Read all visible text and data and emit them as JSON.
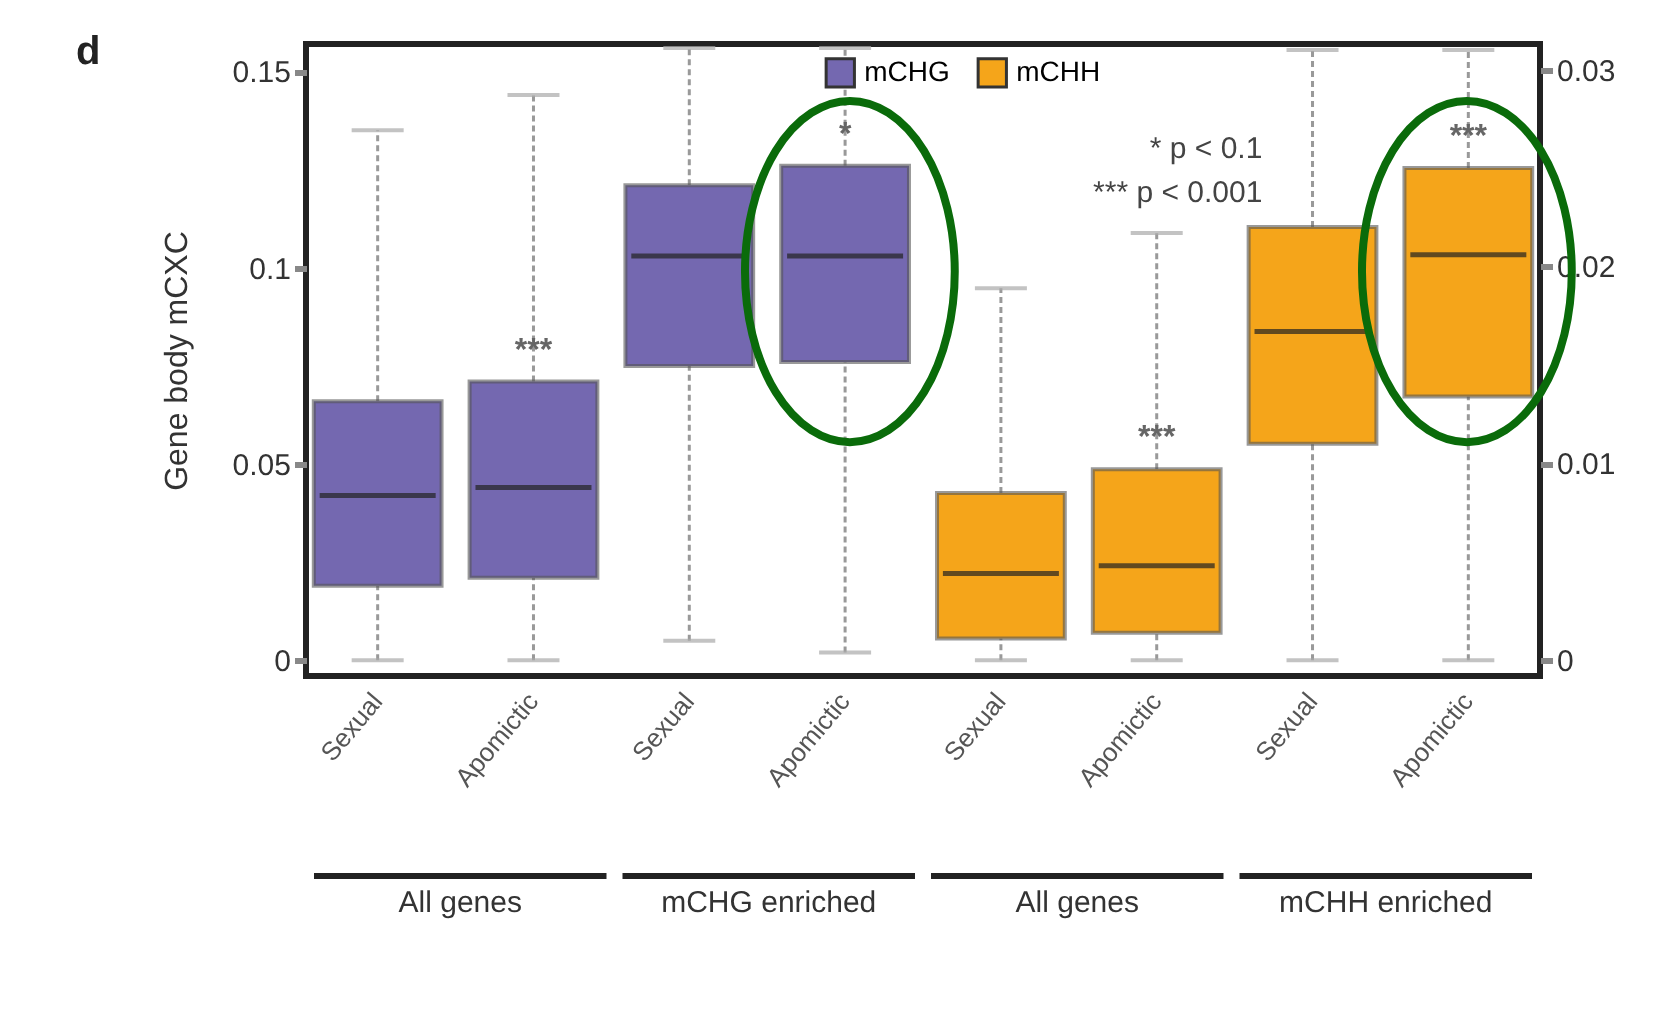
{
  "chart_data": {
    "type": "box",
    "title": "d",
    "ylabel": "Gene body mCXC",
    "categories": [
      "Sexual",
      "Apomictic",
      "Sexual",
      "Apomictic",
      "Sexual",
      "Apomictic",
      "Sexual",
      "Apomictic"
    ],
    "series": [
      {
        "name": "mCHG",
        "color": "#7468b0",
        "boxes": [
          {
            "low": 0,
            "q1": 0.019,
            "median": 0.042,
            "q3": 0.066,
            "high": 0.135
          },
          {
            "low": 0,
            "q1": 0.021,
            "median": 0.044,
            "q3": 0.071,
            "high": 0.144
          },
          {
            "low": 0.005,
            "q1": 0.075,
            "median": 0.103,
            "q3": 0.121,
            "high": 0.156
          },
          {
            "low": 0.002,
            "q1": 0.076,
            "median": 0.103,
            "q3": 0.126,
            "high": 0.156
          },
          null,
          null,
          null,
          null
        ]
      },
      {
        "name": "mCHH",
        "color": "#f5a51a",
        "axis": "y2",
        "boxes": [
          null,
          null,
          null,
          null,
          {
            "low": 0,
            "q1": 0.0011,
            "median": 0.0044,
            "q3": 0.0085,
            "high": 0.0189
          },
          {
            "low": 0,
            "q1": 0.0014,
            "median": 0.0048,
            "q3": 0.0097,
            "high": 0.0217
          },
          {
            "low": 0,
            "q1": 0.011,
            "median": 0.0167,
            "q3": 0.022,
            "high": 0.031
          },
          {
            "low": 0,
            "q1": 0.0134,
            "median": 0.0206,
            "q3": 0.025,
            "high": 0.031
          }
        ]
      }
    ],
    "ylim": [
      -0.004,
      0.157
    ],
    "yticks": [
      0,
      0.05,
      0.1,
      0.15
    ],
    "y2lim": [
      -0.0008,
      0.0313
    ],
    "y2ticks": [
      0,
      0.01,
      0.02,
      0.03
    ],
    "legend": "top",
    "annotations": [
      "***",
      "*",
      "***",
      "***",
      "* p < 0.1",
      "*** p < 0.001",
      "All genes",
      "mCHG enriched",
      "All genes",
      "mCHH enriched"
    ]
  }
}
